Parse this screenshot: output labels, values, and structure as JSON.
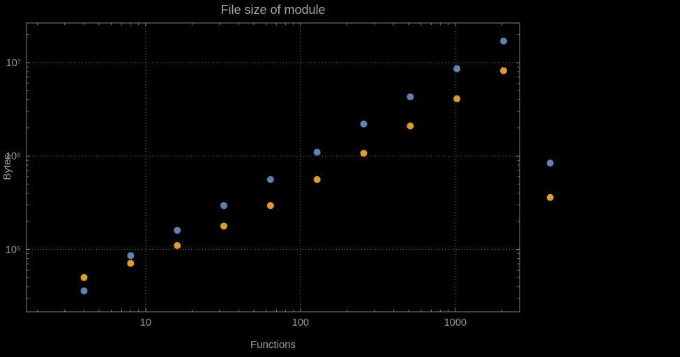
{
  "page": {
    "background": "#000000"
  },
  "chart_data": {
    "type": "scatter",
    "title": "File size of module",
    "xlabel": "Functions",
    "ylabel": "Bytes",
    "x_scale": "log",
    "y_scale": "log",
    "grid": "dotted-major",
    "legend": "none",
    "x_range": [
      1.7,
      2600
    ],
    "y_range": [
      21500,
      26600000
    ],
    "x_ticks": [
      {
        "value": 10,
        "label": "10"
      },
      {
        "value": 100,
        "label": "100"
      },
      {
        "value": 1000,
        "label": "1000"
      }
    ],
    "y_ticks": [
      {
        "value": 100000,
        "label": "10⁵"
      },
      {
        "value": 1000000,
        "label": "10⁶"
      },
      {
        "value": 10000000,
        "label": "10⁷"
      }
    ],
    "colors": {
      "frame": "#848484",
      "grid": "#6e6e6e",
      "text": "#9b9b9b",
      "title": "#a8a8a8",
      "blue": "#5e81b5",
      "orange": "#e19c24"
    },
    "series": [
      {
        "name": "blue",
        "color": "#5e81b5",
        "points": [
          [
            4,
            36000
          ],
          [
            8,
            86000
          ],
          [
            16,
            160000
          ],
          [
            32,
            295000
          ],
          [
            64,
            560000
          ],
          [
            128,
            1100000
          ],
          [
            256,
            2200000
          ],
          [
            512,
            4300000
          ],
          [
            1024,
            8600000
          ],
          [
            2048,
            17000000
          ],
          [
            4096,
            840000
          ]
        ]
      },
      {
        "name": "orange",
        "color": "#e19c24",
        "points": [
          [
            4,
            50000
          ],
          [
            8,
            71000
          ],
          [
            16,
            110000
          ],
          [
            32,
            178000
          ],
          [
            64,
            295000
          ],
          [
            128,
            560000
          ],
          [
            256,
            1070000
          ],
          [
            512,
            2100000
          ],
          [
            1024,
            4100000
          ],
          [
            2048,
            8200000
          ],
          [
            4096,
            360000
          ]
        ]
      }
    ]
  }
}
